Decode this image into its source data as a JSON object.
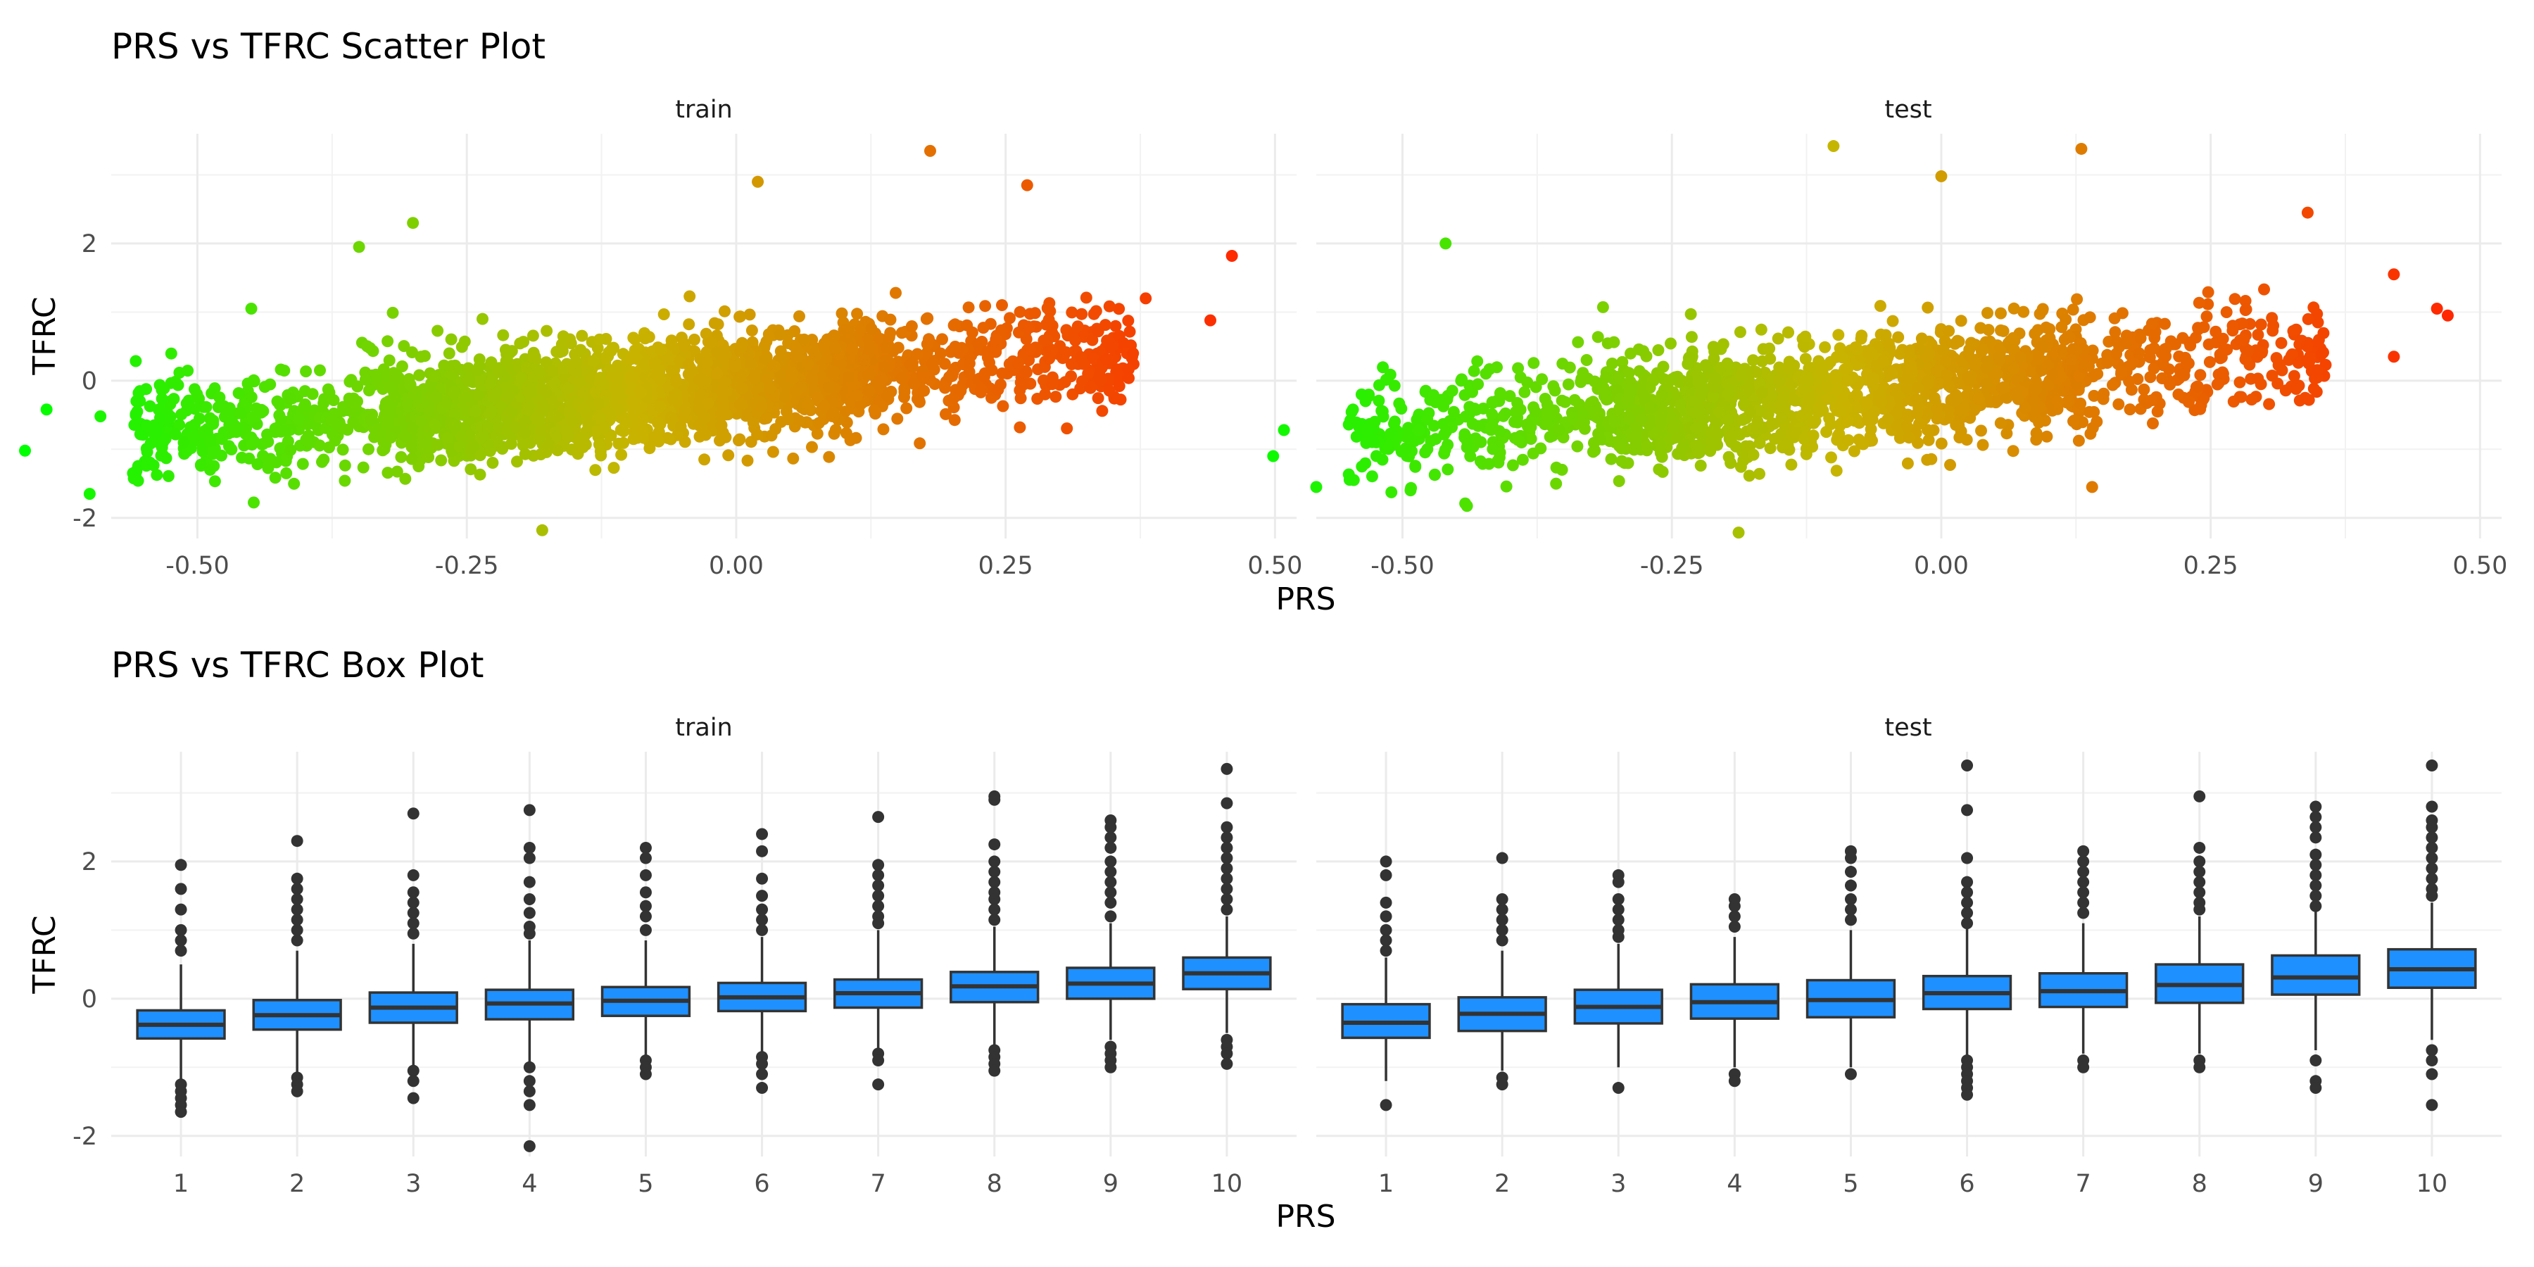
{
  "chart_data": [
    {
      "type": "scatter",
      "title": "PRS vs TFRC Scatter Plot",
      "xlabel": "PRS",
      "ylabel": "TFRC",
      "facets": [
        "train",
        "test"
      ],
      "xlim": [
        -0.58,
        0.52
      ],
      "ylim": [
        -2.3,
        3.6
      ],
      "x_ticks": [
        -0.5,
        -0.25,
        0.0,
        0.25,
        0.5
      ],
      "x_tick_labels": [
        "-0.50",
        "-0.25",
        "0.00",
        "0.25",
        "0.50"
      ],
      "y_ticks": [
        -2,
        0,
        2
      ],
      "y_tick_labels": [
        "-2",
        "0",
        "2"
      ],
      "color_scale": {
        "low": "#00ff00",
        "high": "#ff0000"
      },
      "grid": true,
      "legend": "none",
      "trend": {
        "slope": 1.3,
        "intercept": -0.05
      },
      "panels": [
        {
          "facet": "train",
          "points": [
            {
              "x": -0.66,
              "y": -1.02
            },
            {
              "x": -0.64,
              "y": -0.42
            },
            {
              "x": -0.6,
              "y": -1.65
            },
            {
              "x": -0.59,
              "y": -0.52
            },
            {
              "x": -0.18,
              "y": -2.18
            },
            {
              "x": 0.18,
              "y": 3.35
            },
            {
              "x": 0.27,
              "y": 2.85
            },
            {
              "x": 0.44,
              "y": 0.88
            },
            {
              "x": 0.46,
              "y": 1.82
            },
            {
              "x": 0.38,
              "y": 1.2
            },
            {
              "x": -0.35,
              "y": 1.95
            },
            {
              "x": -0.3,
              "y": 2.3
            },
            {
              "x": 0.02,
              "y": 2.9
            },
            {
              "x": -0.45,
              "y": 1.05
            }
          ],
          "cloud": {
            "n": 2600,
            "x_min": -0.56,
            "x_max": 0.37,
            "y_sd": 0.38
          }
        },
        {
          "facet": "test",
          "points": [
            {
              "x": -0.62,
              "y": -1.1
            },
            {
              "x": -0.61,
              "y": -0.72
            },
            {
              "x": -0.58,
              "y": -1.55
            },
            {
              "x": -0.1,
              "y": 3.42
            },
            {
              "x": 0.13,
              "y": 3.38
            },
            {
              "x": 0.0,
              "y": 2.98
            },
            {
              "x": -0.46,
              "y": 2.0
            },
            {
              "x": 0.14,
              "y": -1.55
            },
            {
              "x": 0.46,
              "y": 1.05
            },
            {
              "x": 0.47,
              "y": 0.95
            },
            {
              "x": 0.42,
              "y": 0.35
            },
            {
              "x": 0.34,
              "y": 2.45
            },
            {
              "x": 0.42,
              "y": 1.55
            }
          ],
          "cloud": {
            "n": 1900,
            "x_min": -0.55,
            "x_max": 0.36,
            "y_sd": 0.4
          }
        }
      ]
    },
    {
      "type": "box",
      "title": "PRS vs TFRC Box Plot",
      "xlabel": "PRS",
      "ylabel": "TFRC",
      "facets": [
        "train",
        "test"
      ],
      "categories": [
        "1",
        "2",
        "3",
        "4",
        "5",
        "6",
        "7",
        "8",
        "9",
        "10"
      ],
      "ylim": [
        -2.3,
        3.6
      ],
      "y_ticks": [
        -2,
        0,
        2
      ],
      "y_tick_labels": [
        "-2",
        "0",
        "2"
      ],
      "box_fill": "#1e90ff",
      "box_stroke": "#333333",
      "grid": true,
      "panels": [
        {
          "facet": "train",
          "boxes": [
            {
              "q1": -0.58,
              "median": -0.38,
              "q3": -0.17,
              "wlo": -1.2,
              "whi": 0.5,
              "outliers": [
                1.95,
                1.6,
                1.3,
                1.0,
                0.85,
                0.7,
                -1.25,
                -1.35,
                -1.45,
                -1.55,
                -1.65
              ]
            },
            {
              "q1": -0.45,
              "median": -0.24,
              "q3": -0.02,
              "wlo": -1.1,
              "whi": 0.7,
              "outliers": [
                2.3,
                1.75,
                1.6,
                1.45,
                1.3,
                1.15,
                1.0,
                0.85,
                -1.15,
                -1.25,
                -1.35
              ]
            },
            {
              "q1": -0.35,
              "median": -0.13,
              "q3": 0.09,
              "wlo": -1.0,
              "whi": 0.8,
              "outliers": [
                2.7,
                1.8,
                1.55,
                1.4,
                1.25,
                1.1,
                0.95,
                -1.05,
                -1.2,
                -1.45
              ]
            },
            {
              "q1": -0.3,
              "median": -0.07,
              "q3": 0.13,
              "wlo": -0.95,
              "whi": 0.85,
              "outliers": [
                2.75,
                2.2,
                2.05,
                1.7,
                1.45,
                1.25,
                1.05,
                0.95,
                -1.0,
                -1.2,
                -1.35,
                -1.55,
                -2.15
              ]
            },
            {
              "q1": -0.25,
              "median": -0.03,
              "q3": 0.17,
              "wlo": -0.85,
              "whi": 0.85,
              "outliers": [
                2.2,
                2.05,
                1.8,
                1.55,
                1.35,
                1.2,
                1.0,
                -0.9,
                -1.0,
                -1.1
              ]
            },
            {
              "q1": -0.18,
              "median": 0.02,
              "q3": 0.23,
              "wlo": -0.8,
              "whi": 0.9,
              "outliers": [
                2.4,
                2.15,
                1.75,
                1.5,
                1.3,
                1.15,
                1.0,
                -0.85,
                -0.95,
                -1.1,
                -1.3
              ]
            },
            {
              "q1": -0.13,
              "median": 0.08,
              "q3": 0.28,
              "wlo": -0.75,
              "whi": 1.0,
              "outliers": [
                2.65,
                1.95,
                1.8,
                1.65,
                1.5,
                1.35,
                1.2,
                1.1,
                -0.8,
                -0.9,
                -1.25
              ]
            },
            {
              "q1": -0.05,
              "median": 0.18,
              "q3": 0.39,
              "wlo": -0.7,
              "whi": 1.05,
              "outliers": [
                2.95,
                2.9,
                2.25,
                2.0,
                1.85,
                1.7,
                1.55,
                1.45,
                1.3,
                1.15,
                -0.75,
                -0.85,
                -0.95,
                -1.05
              ]
            },
            {
              "q1": 0.0,
              "median": 0.22,
              "q3": 0.45,
              "wlo": -0.6,
              "whi": 1.1,
              "outliers": [
                2.6,
                2.5,
                2.35,
                2.2,
                2.0,
                1.85,
                1.7,
                1.55,
                1.4,
                1.2,
                -0.7,
                -0.8,
                -0.9,
                -1.0
              ]
            },
            {
              "q1": 0.14,
              "median": 0.37,
              "q3": 0.6,
              "wlo": -0.5,
              "whi": 1.2,
              "outliers": [
                3.35,
                2.85,
                2.5,
                2.35,
                2.2,
                2.05,
                1.9,
                1.75,
                1.6,
                1.45,
                1.3,
                -0.6,
                -0.7,
                -0.8,
                -0.95
              ]
            }
          ]
        },
        {
          "facet": "test",
          "boxes": [
            {
              "q1": -0.57,
              "median": -0.35,
              "q3": -0.08,
              "wlo": -1.2,
              "whi": 0.6,
              "outliers": [
                2.0,
                1.8,
                1.4,
                1.2,
                1.0,
                0.85,
                0.7,
                -1.55
              ]
            },
            {
              "q1": -0.47,
              "median": -0.22,
              "q3": 0.02,
              "wlo": -1.05,
              "whi": 0.7,
              "outliers": [
                2.05,
                1.45,
                1.3,
                1.15,
                1.0,
                0.85,
                -1.15,
                -1.25
              ]
            },
            {
              "q1": -0.36,
              "median": -0.12,
              "q3": 0.13,
              "wlo": -1.0,
              "whi": 0.8,
              "outliers": [
                1.8,
                1.7,
                1.45,
                1.3,
                1.15,
                1.0,
                0.9,
                -1.3
              ]
            },
            {
              "q1": -0.29,
              "median": -0.05,
              "q3": 0.21,
              "wlo": -1.0,
              "whi": 0.9,
              "outliers": [
                1.45,
                1.35,
                1.2,
                1.05,
                -1.1,
                -1.2
              ]
            },
            {
              "q1": -0.27,
              "median": -0.02,
              "q3": 0.27,
              "wlo": -1.0,
              "whi": 1.0,
              "outliers": [
                2.15,
                2.05,
                1.85,
                1.65,
                1.45,
                1.3,
                1.15,
                -1.1
              ]
            },
            {
              "q1": -0.15,
              "median": 0.08,
              "q3": 0.33,
              "wlo": -0.85,
              "whi": 1.05,
              "outliers": [
                3.4,
                2.75,
                2.05,
                1.7,
                1.55,
                1.4,
                1.25,
                1.1,
                -0.9,
                -1.0,
                -1.1,
                -1.2,
                -1.3,
                -1.4
              ]
            },
            {
              "q1": -0.12,
              "median": 0.11,
              "q3": 0.37,
              "wlo": -0.8,
              "whi": 1.1,
              "outliers": [
                2.15,
                2.0,
                1.85,
                1.7,
                1.55,
                1.4,
                1.25,
                -0.9,
                -1.0
              ]
            },
            {
              "q1": -0.06,
              "median": 0.2,
              "q3": 0.5,
              "wlo": -0.8,
              "whi": 1.2,
              "outliers": [
                2.95,
                2.2,
                2.0,
                1.85,
                1.7,
                1.55,
                1.4,
                1.3,
                -0.9,
                -1.0
              ]
            },
            {
              "q1": 0.06,
              "median": 0.31,
              "q3": 0.63,
              "wlo": -0.75,
              "whi": 1.3,
              "outliers": [
                2.8,
                2.65,
                2.5,
                2.35,
                2.1,
                1.95,
                1.8,
                1.65,
                1.5,
                1.35,
                -0.9,
                -1.2,
                -1.3
              ]
            },
            {
              "q1": 0.16,
              "median": 0.43,
              "q3": 0.72,
              "wlo": -0.6,
              "whi": 1.4,
              "outliers": [
                3.4,
                2.8,
                2.6,
                2.5,
                2.35,
                2.2,
                2.05,
                1.9,
                1.75,
                1.6,
                1.5,
                -0.75,
                -0.9,
                -1.1,
                -1.55
              ]
            }
          ]
        }
      ]
    }
  ]
}
